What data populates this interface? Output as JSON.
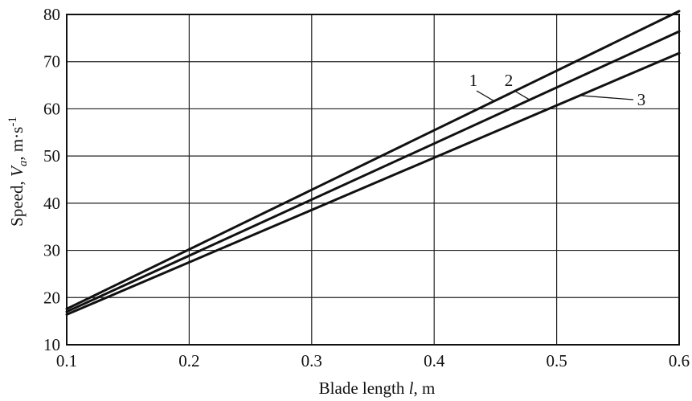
{
  "chart_data": {
    "type": "line",
    "xlabel": {
      "prefix": "Blade length ",
      "var": "l",
      "suffix": ", m"
    },
    "ylabel": {
      "prefix": "Speed, ",
      "var": "V",
      "sub": "a",
      "suffix": ", m·s",
      "sup": "-1"
    },
    "xlim": [
      0.1,
      0.6
    ],
    "ylim": [
      10,
      80
    ],
    "xticks": [
      0.1,
      0.2,
      0.3,
      0.4,
      0.5,
      0.6
    ],
    "xtick_labels": [
      "0.1",
      "0.2",
      "0.3",
      "0.4",
      "0.5",
      "0.6"
    ],
    "yticks": [
      10,
      20,
      30,
      40,
      50,
      60,
      70,
      80
    ],
    "ytick_labels": [
      "10",
      "20",
      "30",
      "40",
      "50",
      "60",
      "70",
      "80"
    ],
    "grid": true,
    "series": [
      {
        "name": "1",
        "x": [
          0.1,
          0.6
        ],
        "y": [
          17.6,
          80.7
        ]
      },
      {
        "name": "2",
        "x": [
          0.1,
          0.6
        ],
        "y": [
          17.0,
          76.4
        ]
      },
      {
        "name": "3",
        "x": [
          0.1,
          0.6
        ],
        "y": [
          16.4,
          71.8
        ]
      }
    ]
  }
}
